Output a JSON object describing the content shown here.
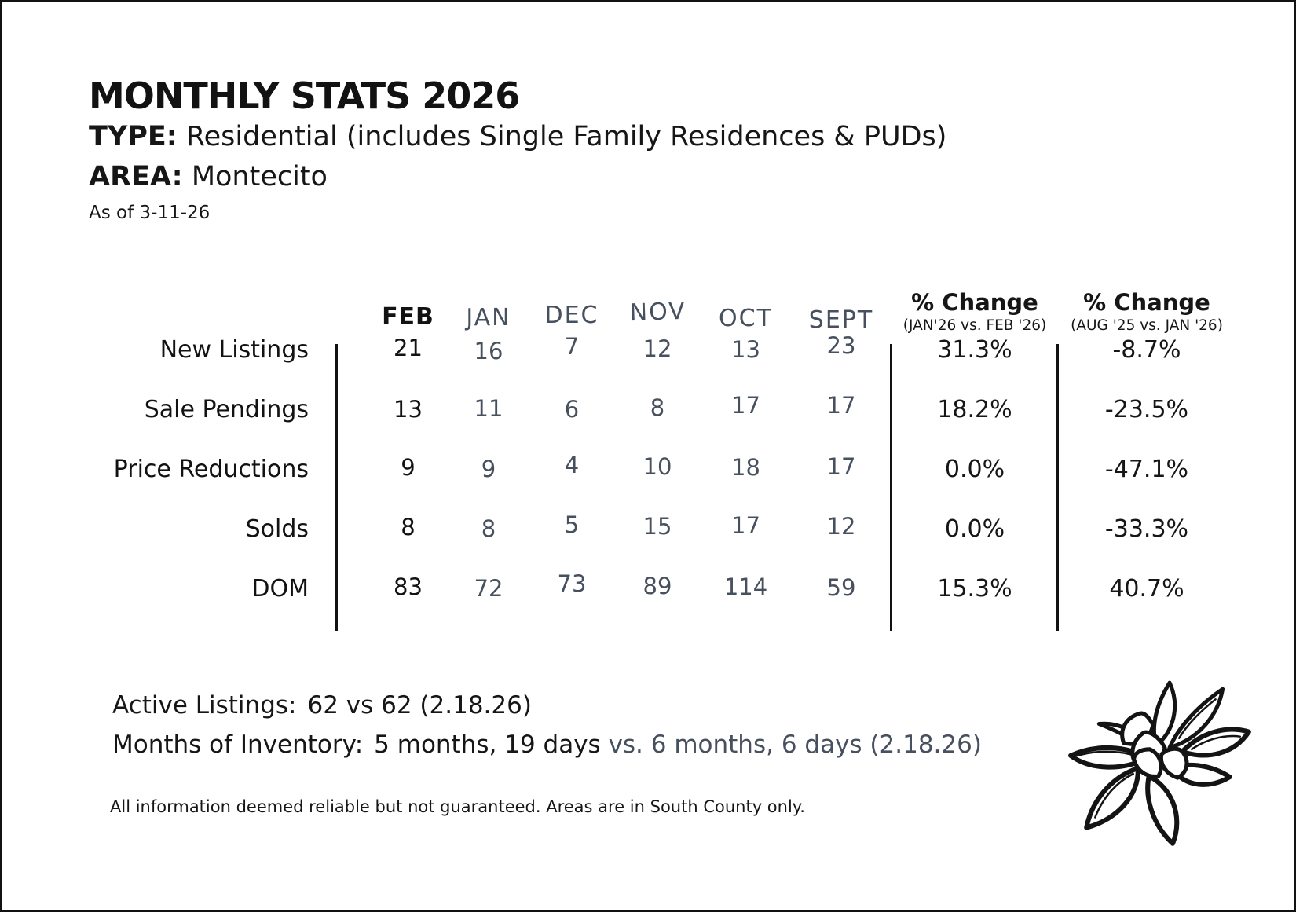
{
  "header": {
    "title": "MONTHLY STATS 2026",
    "type_label": "TYPE:",
    "type_value": " Residential (includes Single Family Residences & PUDs)",
    "area_label": "AREA:",
    "area_value": " Montecito",
    "as_of": "As of 3-11-26"
  },
  "table": {
    "month_columns": [
      "FEB",
      "JAN",
      "DEC",
      "NOV",
      "OCT",
      "SEPT"
    ],
    "pct_columns": [
      {
        "title": "% Change",
        "subtitle": "(JAN'26 vs. FEB '26)"
      },
      {
        "title": "% Change",
        "subtitle": "(AUG '25 vs. JAN '26)"
      }
    ],
    "rows": [
      {
        "label": "New Listings",
        "values": [
          "21",
          "16",
          "7",
          "12",
          "13",
          "23"
        ],
        "pct": [
          "31.3%",
          "-8.7%"
        ]
      },
      {
        "label": "Sale Pendings",
        "values": [
          "13",
          "11",
          "6",
          "8",
          "17",
          "17"
        ],
        "pct": [
          "18.2%",
          "-23.5%"
        ]
      },
      {
        "label": "Price Reductions",
        "values": [
          "9",
          "9",
          "4",
          "10",
          "18",
          "17"
        ],
        "pct": [
          "0.0%",
          "-47.1%"
        ]
      },
      {
        "label": "Solds",
        "values": [
          "8",
          "8",
          "5",
          "15",
          "17",
          "12"
        ],
        "pct": [
          "0.0%",
          "-33.3%"
        ]
      },
      {
        "label": "DOM",
        "values": [
          "83",
          "72",
          "73",
          "89",
          "114",
          "59"
        ],
        "pct": [
          "15.3%",
          "40.7%"
        ]
      }
    ]
  },
  "footer": {
    "active_listings_label": "Active Listings:",
    "active_listings_value": "62 vs 62 (2.18.26)",
    "inventory_label": "Months of Inventory:",
    "inventory_current": "5 months, 19 days",
    "inventory_prior": "vs. 6 months, 6 days (2.18.26)",
    "disclaimer": "All information deemed reliable but not guaranteed. Areas are in South County only."
  },
  "logo": {
    "name": "magnolia-flower"
  },
  "colors": {
    "text": "#161616",
    "muted": "#47505E",
    "line": "#121212",
    "background": "#ffffff"
  }
}
